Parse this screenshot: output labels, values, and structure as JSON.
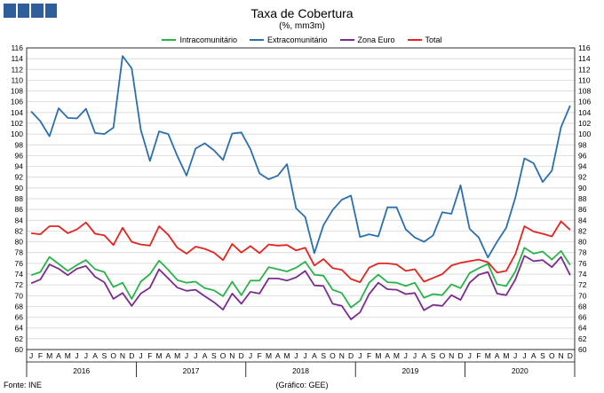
{
  "chart_data": {
    "type": "line",
    "title": "Taxa de Cobertura",
    "subtitle": "(%, mm3m)",
    "ylim": [
      60,
      116
    ],
    "yticks": [
      60,
      62,
      64,
      66,
      68,
      70,
      72,
      74,
      76,
      78,
      80,
      82,
      84,
      86,
      88,
      90,
      92,
      94,
      96,
      98,
      100,
      102,
      104,
      106,
      108,
      110,
      112,
      114,
      116
    ],
    "grid": true,
    "legend_position": "top",
    "month_labels": [
      "J",
      "F",
      "M",
      "A",
      "M",
      "J",
      "J",
      "A",
      "S",
      "O",
      "N",
      "D"
    ],
    "years": [
      "2016",
      "2017",
      "2018",
      "2019",
      "2020"
    ],
    "series": [
      {
        "name": "Intracomunitário",
        "color": "#2ab24b",
        "values": [
          73.8,
          74.4,
          77.2,
          75.9,
          74.6,
          75.7,
          76.6,
          74.9,
          74.4,
          71.6,
          72.4,
          69.4,
          72.6,
          74.0,
          76.5,
          74.8,
          72.9,
          72.4,
          72.6,
          71.4,
          71.0,
          69.9,
          72.6,
          70.1,
          72.8,
          72.8,
          75.3,
          74.9,
          74.5,
          75.2,
          76.3,
          73.9,
          73.7,
          71.1,
          70.5,
          67.8,
          69.1,
          72.4,
          73.9,
          72.5,
          72.4,
          71.8,
          72.4,
          69.6,
          70.3,
          70.1,
          72.1,
          71.4,
          74.2,
          75.1,
          75.9,
          72.1,
          71.8,
          74.5,
          78.9,
          77.8,
          78.2,
          76.7,
          78.3,
          75.7
        ]
      },
      {
        "name": "Extracomunitário",
        "color": "#2c6fad",
        "values": [
          104.2,
          102.4,
          99.6,
          104.8,
          103.0,
          102.9,
          104.7,
          100.2,
          100.0,
          101.2,
          114.5,
          112.2,
          100.8,
          95.0,
          100.5,
          100.0,
          95.9,
          92.3,
          97.3,
          98.3,
          97.0,
          95.2,
          100.1,
          100.3,
          97.2,
          92.7,
          91.6,
          92.3,
          94.4,
          86.2,
          84.6,
          77.9,
          83.1,
          85.9,
          87.8,
          88.6,
          80.9,
          81.4,
          81.0,
          86.4,
          86.4,
          82.3,
          80.8,
          80.0,
          81.2,
          85.5,
          85.2,
          90.5,
          82.4,
          80.8,
          77.1,
          80.0,
          82.6,
          88.2,
          95.5,
          94.6,
          91.1,
          93.2,
          101.3,
          105.3
        ]
      },
      {
        "name": "Zona Euro",
        "color": "#7b2c8f",
        "values": [
          72.3,
          73.0,
          75.8,
          75.0,
          73.8,
          75.0,
          75.5,
          73.5,
          72.5,
          69.4,
          70.5,
          68.1,
          70.4,
          71.5,
          74.9,
          73.2,
          71.5,
          70.9,
          71.1,
          69.9,
          68.8,
          67.4,
          70.4,
          68.5,
          70.7,
          70.4,
          73.2,
          73.2,
          72.8,
          73.4,
          74.6,
          71.9,
          71.8,
          68.5,
          68.1,
          65.6,
          66.9,
          70.3,
          72.4,
          71.2,
          71.1,
          70.3,
          70.5,
          67.3,
          68.3,
          68.1,
          70.1,
          69.2,
          72.4,
          73.9,
          74.4,
          70.4,
          70.1,
          73.0,
          77.4,
          76.4,
          76.6,
          75.3,
          77.2,
          73.8
        ]
      },
      {
        "name": "Total",
        "color": "#e4251f",
        "values": [
          81.6,
          81.4,
          82.9,
          82.9,
          81.6,
          82.3,
          83.6,
          81.5,
          81.2,
          79.4,
          82.6,
          80.0,
          79.5,
          79.3,
          82.9,
          81.3,
          78.9,
          77.8,
          79.1,
          78.7,
          78.0,
          76.6,
          79.6,
          78.0,
          79.2,
          77.9,
          79.5,
          79.3,
          79.4,
          78.4,
          78.9,
          75.6,
          76.8,
          75.1,
          74.8,
          73.1,
          72.5,
          75.2,
          76.0,
          76.0,
          75.8,
          74.6,
          74.9,
          72.6,
          73.3,
          74.0,
          75.6,
          76.1,
          76.4,
          76.7,
          76.2,
          74.3,
          74.6,
          77.7,
          82.9,
          81.9,
          81.5,
          81.0,
          83.8,
          82.2
        ]
      }
    ]
  },
  "header": {
    "logo_label": "INE"
  },
  "footer": {
    "source_left": "Fonte: INE",
    "source_center": "(Gráfico: GEE)"
  }
}
